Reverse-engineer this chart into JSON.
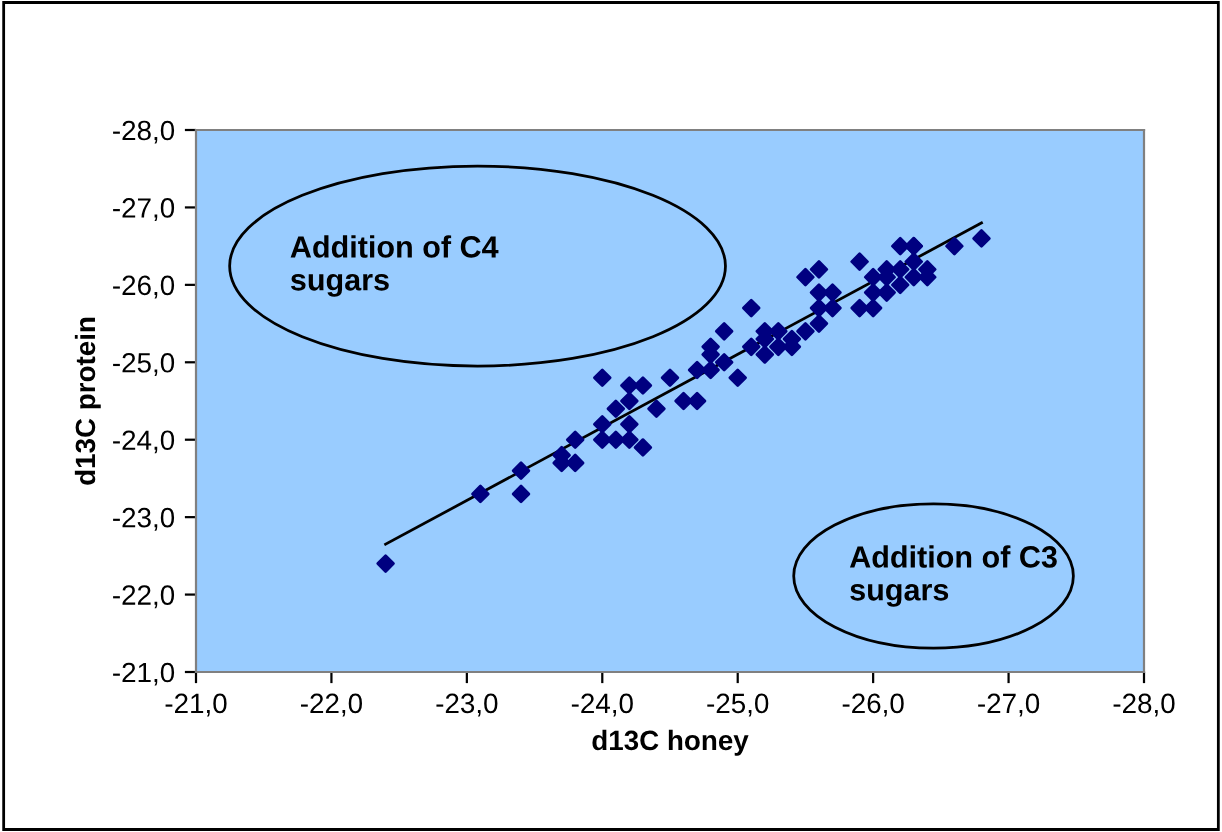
{
  "chart_data": {
    "type": "scatter",
    "xlabel": "d13C honey",
    "ylabel": "d13C protein",
    "xlim": [
      -21,
      -28
    ],
    "ylim": [
      -21,
      -28
    ],
    "xticks": [
      {
        "value": -21,
        "label": "-21,0"
      },
      {
        "value": -22,
        "label": "-22,0"
      },
      {
        "value": -23,
        "label": "-23,0"
      },
      {
        "value": -24,
        "label": "-24,0"
      },
      {
        "value": -25,
        "label": "-25,0"
      },
      {
        "value": -26,
        "label": "-26,0"
      },
      {
        "value": -27,
        "label": "-27,0"
      },
      {
        "value": -28,
        "label": "-28,0"
      }
    ],
    "yticks": [
      {
        "value": -21,
        "label": "-21,0"
      },
      {
        "value": -22,
        "label": "-22,0"
      },
      {
        "value": -23,
        "label": "-23,0"
      },
      {
        "value": -24,
        "label": "-24,0"
      },
      {
        "value": -25,
        "label": "-25,0"
      },
      {
        "value": -26,
        "label": "-26,0"
      },
      {
        "value": -27,
        "label": "-27,0"
      },
      {
        "value": -28,
        "label": "-28,0"
      }
    ],
    "grid": false,
    "legend": false,
    "marker": "diamond",
    "annotations": [
      "Addition of C4\nsugars",
      "Addition of C3\nsugars"
    ],
    "series": [
      {
        "color": "#000080",
        "x": [
          -22.4,
          -23.1,
          -23.4,
          -23.4,
          -23.7,
          -23.7,
          -23.8,
          -23.8,
          -24.0,
          -24.0,
          -24.0,
          -24.1,
          -24.1,
          -24.2,
          -24.2,
          -24.2,
          -24.2,
          -24.3,
          -24.3,
          -24.4,
          -24.5,
          -24.6,
          -24.7,
          -24.7,
          -24.8,
          -24.8,
          -24.8,
          -24.9,
          -24.9,
          -25.0,
          -25.1,
          -25.1,
          -25.2,
          -25.2,
          -25.2,
          -25.3,
          -25.3,
          -25.4,
          -25.4,
          -25.5,
          -25.5,
          -25.6,
          -25.6,
          -25.6,
          -25.6,
          -25.7,
          -25.7,
          -25.9,
          -25.9,
          -26.0,
          -26.0,
          -26.0,
          -26.1,
          -26.1,
          -26.1,
          -26.2,
          -26.2,
          -26.2,
          -26.3,
          -26.3,
          -26.3,
          -26.3,
          -26.4,
          -26.4,
          -26.6,
          -26.8
        ],
        "values": [
          -22.4,
          -23.3,
          -23.6,
          -23.3,
          -23.8,
          -23.7,
          -24.0,
          -23.7,
          -24.8,
          -24.2,
          -24.0,
          -24.4,
          -24.0,
          -24.7,
          -24.5,
          -24.2,
          -24.0,
          -24.7,
          -23.9,
          -24.4,
          -24.8,
          -24.5,
          -24.5,
          -24.9,
          -25.2,
          -25.1,
          -24.9,
          -25.4,
          -25.0,
          -24.8,
          -25.7,
          -25.2,
          -25.4,
          -25.3,
          -25.1,
          -25.4,
          -25.2,
          -25.3,
          -25.2,
          -25.4,
          -26.1,
          -26.2,
          -25.9,
          -25.7,
          -25.5,
          -25.9,
          -25.7,
          -26.3,
          -25.7,
          -25.7,
          -26.1,
          -25.9,
          -26.2,
          -26.1,
          -25.9,
          -26.5,
          -26.2,
          -26.0,
          -26.5,
          -26.5,
          -26.3,
          -26.1,
          -26.2,
          -26.1,
          -26.5,
          -26.6
        ]
      },
      {
        "type": "line",
        "color": "#000000",
        "marker": "none",
        "x": [
          -22.4,
          -26.8
        ],
        "values": [
          -22.65,
          -26.8
        ]
      }
    ]
  }
}
